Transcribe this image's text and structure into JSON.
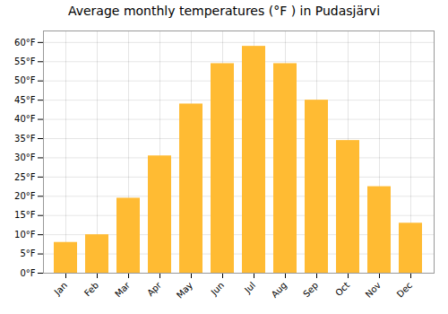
{
  "chart_data": {
    "type": "bar",
    "title": "Average monthly temperatures (°F ) in Pudasjärvi",
    "categories": [
      "Jan",
      "Feb",
      "Mar",
      "Apr",
      "May",
      "Jun",
      "Jul",
      "Aug",
      "Sep",
      "Oct",
      "Nov",
      "Dec"
    ],
    "values": [
      8,
      10,
      19.5,
      30.5,
      44,
      54.5,
      59,
      54.5,
      45,
      34.5,
      22.5,
      13
    ],
    "color": "#FFBB33",
    "ylim": [
      0,
      63
    ],
    "yticks": [
      {
        "value": 0,
        "label": "0°F"
      },
      {
        "value": 5,
        "label": "5°F"
      },
      {
        "value": 10,
        "label": "10°F"
      },
      {
        "value": 15,
        "label": "15°F"
      },
      {
        "value": 20,
        "label": "20°F"
      },
      {
        "value": 25,
        "label": "25°F"
      },
      {
        "value": 30,
        "label": "30°F"
      },
      {
        "value": 35,
        "label": "35°F"
      },
      {
        "value": 40,
        "label": "40°F"
      },
      {
        "value": 45,
        "label": "45°F"
      },
      {
        "value": 50,
        "label": "50°F"
      },
      {
        "value": 55,
        "label": "55°F"
      },
      {
        "value": 60,
        "label": "60°F"
      }
    ],
    "grid": true
  }
}
